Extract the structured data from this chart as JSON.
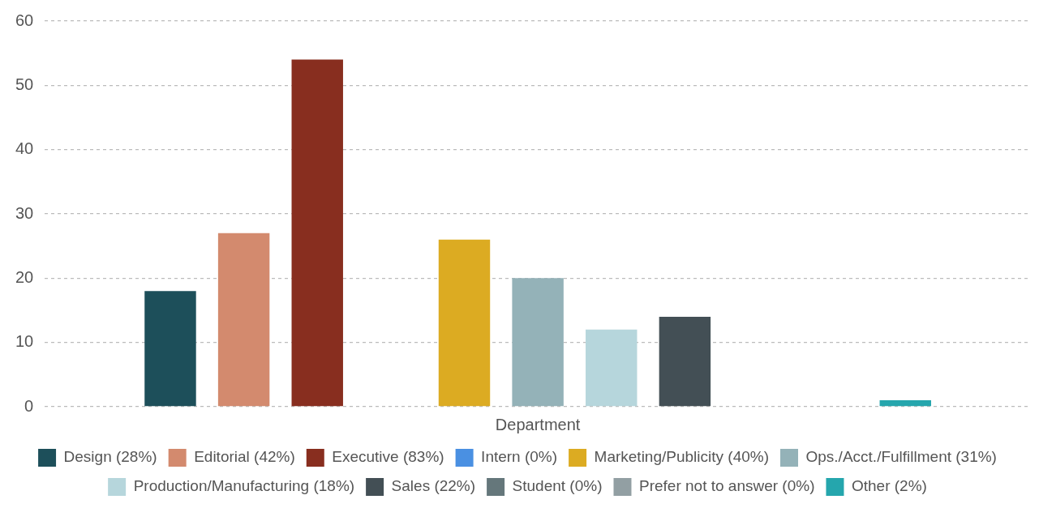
{
  "chart_data": {
    "type": "bar",
    "categories": [
      "Department"
    ],
    "series": [
      {
        "name": "Design (28%)",
        "color": "#1d4f5a",
        "values": [
          18
        ]
      },
      {
        "name": "Editorial (42%)",
        "color": "#d38a6e",
        "values": [
          27
        ]
      },
      {
        "name": "Executive (83%)",
        "color": "#882e1f",
        "values": [
          54
        ]
      },
      {
        "name": "Intern (0%)",
        "color": "#4a90e2",
        "values": [
          0
        ]
      },
      {
        "name": "Marketing/Publicity (40%)",
        "color": "#dcab22",
        "values": [
          26
        ]
      },
      {
        "name": "Ops./Acct./Fulfillment (31%)",
        "color": "#94b2b8",
        "values": [
          20
        ]
      },
      {
        "name": "Production/Manufacturing (18%)",
        "color": "#b6d6dc",
        "values": [
          12
        ]
      },
      {
        "name": "Sales (22%)",
        "color": "#434f55",
        "values": [
          14
        ]
      },
      {
        "name": "Student (0%)",
        "color": "#65777b",
        "values": [
          0
        ]
      },
      {
        "name": "Prefer not to answer (0%)",
        "color": "#929fa3",
        "values": [
          0
        ]
      },
      {
        "name": "Other (2%)",
        "color": "#25a6ad",
        "values": [
          1
        ]
      }
    ],
    "ylim": [
      0,
      60
    ],
    "yticks": [
      0,
      10,
      20,
      30,
      40,
      50,
      60
    ],
    "grid": "y",
    "legend": "bottom"
  }
}
